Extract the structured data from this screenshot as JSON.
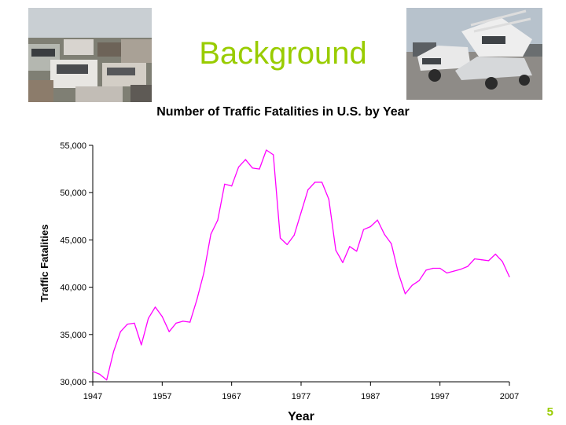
{
  "slide": {
    "title": "Background",
    "page_number": "5",
    "title_color": "#99cc00"
  },
  "images": {
    "left": "wrecked-cars-pile-photo",
    "right": "crushed-trucks-photo"
  },
  "chart_data": {
    "type": "line",
    "title": "Number of Traffic Fatalities in U.S. by Year",
    "xlabel": "Year",
    "ylabel": "Traffic Fatalities",
    "xlim": [
      1947,
      2007
    ],
    "ylim": [
      30000,
      55000
    ],
    "x_ticks": [
      "1947",
      "1957",
      "1967",
      "1977",
      "1987",
      "1997",
      "2007"
    ],
    "y_ticks": [
      "30,000",
      "35,000",
      "40,000",
      "45,000",
      "50,000",
      "55,000"
    ],
    "grid": false,
    "legend": "none",
    "series": [
      {
        "color": "#ff00ff",
        "x": [
          1947,
          1948,
          1949,
          1950,
          1951,
          1952,
          1953,
          1954,
          1955,
          1956,
          1957,
          1958,
          1959,
          1960,
          1961,
          1962,
          1963,
          1964,
          1965,
          1966,
          1967,
          1968,
          1969,
          1970,
          1971,
          1972,
          1973,
          1974,
          1975,
          1976,
          1977,
          1978,
          1979,
          1980,
          1981,
          1982,
          1983,
          1984,
          1985,
          1986,
          1987,
          1988,
          1989,
          1990,
          1991,
          1992,
          1993,
          1994,
          1995,
          1996,
          1997,
          1998,
          1999,
          2000,
          2001,
          2002,
          2003,
          2004,
          2005,
          2006,
          2007
        ],
        "y": [
          31100,
          30800,
          30200,
          33200,
          35300,
          36100,
          36200,
          33900,
          36700,
          37900,
          36900,
          35300,
          36200,
          36400,
          36300,
          38700,
          41500,
          45600,
          47100,
          50900,
          50700,
          52700,
          53500,
          52600,
          52500,
          54500,
          54000,
          45200,
          44500,
          45500,
          47900,
          50300,
          51100,
          51100,
          49300,
          43900,
          42600,
          44300,
          43800,
          46100,
          46400,
          47100,
          45600,
          44600,
          41500,
          39300,
          40200,
          40700,
          41800,
          42000,
          42000,
          41500,
          41700,
          41900,
          42200,
          43000,
          42900,
          42800,
          43500,
          42700,
          41100
        ]
      }
    ]
  }
}
